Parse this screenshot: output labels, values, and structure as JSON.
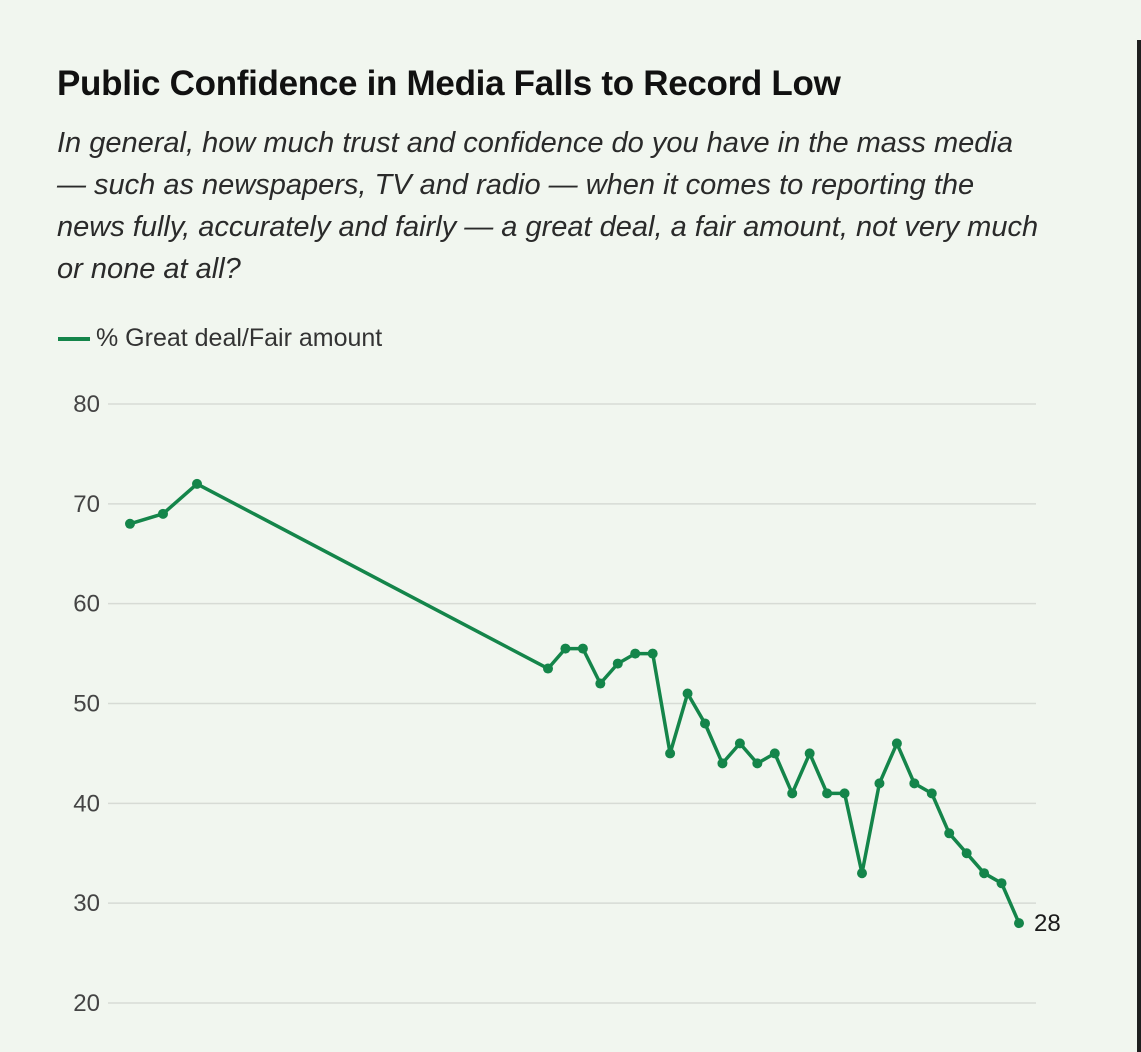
{
  "title": "Public Confidence in Media Falls to Record Low",
  "subtitle": "In general, how much trust and confidence do you have in the mass media — such as newspapers, TV and radio — when it comes to reporting the news fully, accurately and fairly — a great deal, a fair amount, not very much or none at all?",
  "legend": {
    "label": "% Great deal/Fair amount"
  },
  "colors": {
    "series": "#14854a",
    "background": "#f1f6ef",
    "grid": "#d7dbd5"
  },
  "chart_data": {
    "type": "line",
    "title": "Public Confidence in Media Falls to Record Low",
    "xlabel": "",
    "ylabel": "",
    "ylim": [
      20,
      80
    ],
    "yticks": [
      80,
      70,
      60,
      50,
      40,
      30,
      20
    ],
    "grid": true,
    "legend_position": "top-left",
    "series": [
      {
        "name": "% Great deal/Fair amount",
        "values": [
          68,
          69,
          72,
          53.5,
          55.5,
          55.5,
          52,
          54,
          55,
          55,
          45,
          51,
          48,
          44,
          46,
          44,
          45,
          41,
          45,
          41,
          41,
          33,
          42,
          46,
          42,
          41,
          37,
          35,
          33,
          32,
          28
        ],
        "end_label": "28"
      }
    ]
  }
}
